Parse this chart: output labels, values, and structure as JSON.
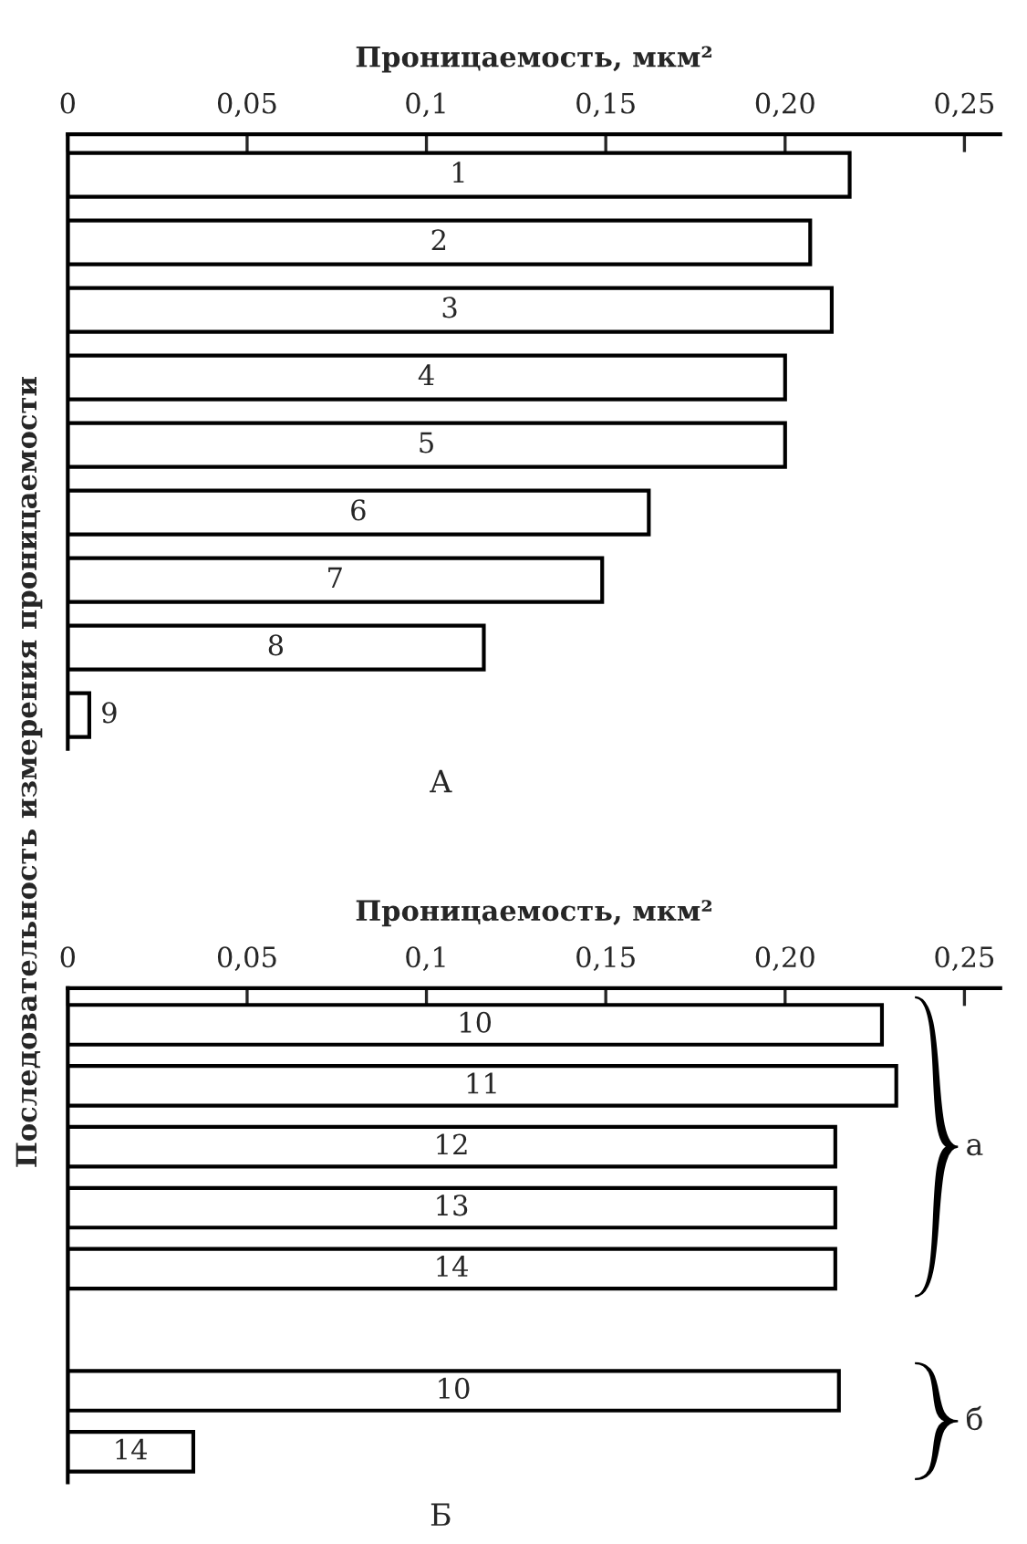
{
  "chart_data": [
    {
      "type": "bar",
      "orientation": "horizontal",
      "title": "А",
      "xlabel": "Проницаемость, мкм²",
      "ylabel": "Последовательность измерения проницаемости",
      "categories": [
        "1",
        "2",
        "3",
        "4",
        "5",
        "6",
        "7",
        "8",
        "9"
      ],
      "values": [
        0.218,
        0.207,
        0.213,
        0.2,
        0.2,
        0.162,
        0.149,
        0.116,
        0.006
      ],
      "color": "#ffffff",
      "xlim": [
        0,
        0.26
      ],
      "xticks": [
        0,
        {
          "value": 0.05,
          "label": "0,05"
        },
        {
          "value": 0.1,
          "label": "0,1"
        },
        {
          "value": 0.15,
          "label": "0,15"
        },
        {
          "value": 0.2,
          "label": "0,20"
        },
        {
          "value": 0.25,
          "label": "0,25"
        }
      ],
      "grid": false
    },
    {
      "type": "bar",
      "orientation": "horizontal",
      "title": "Б",
      "xlabel": "Проницаемость, мкм²",
      "categories": [
        "10",
        "11",
        "12",
        "13",
        "14",
        null,
        "10",
        "14"
      ],
      "values": [
        0.227,
        0.231,
        0.214,
        0.214,
        0.214,
        null,
        0.215,
        0.035
      ],
      "color": "#ffffff",
      "xlim": [
        0,
        0.26
      ],
      "xticks": [
        0,
        {
          "value": 0.05,
          "label": "0,05"
        },
        {
          "value": 0.1,
          "label": "0,1"
        },
        {
          "value": 0.15,
          "label": "0,15"
        },
        {
          "value": 0.2,
          "label": "0,20"
        },
        {
          "value": 0.25,
          "label": "0,25"
        }
      ],
      "annotations": [
        "а",
        "б"
      ],
      "grid": false
    }
  ]
}
